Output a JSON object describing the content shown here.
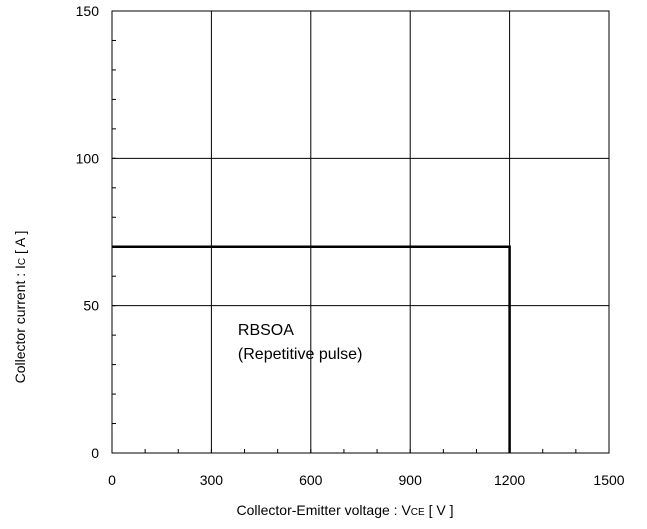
{
  "chart_data": {
    "type": "line",
    "title": "",
    "xlabel": "Collector-Emitter voltage  :  V",
    "xlabel_sub": "CE",
    "xlabel_unit": " [ V ]",
    "ylabel": "Collector current : I",
    "ylabel_sub": "C",
    "ylabel_unit": " [ A ]",
    "xlim": [
      0,
      1500
    ],
    "ylim": [
      0,
      150
    ],
    "x_ticks": [
      0,
      300,
      600,
      900,
      1200,
      1500
    ],
    "y_ticks": [
      0,
      50,
      100,
      150
    ],
    "x_tick_labels": [
      "0",
      "300",
      "600",
      "900",
      "1200",
      "1500"
    ],
    "y_tick_labels": [
      "0",
      "50",
      "100",
      "150"
    ],
    "grid": true,
    "series": [
      {
        "x": [
          0,
          1200,
          1200
        ],
        "y": [
          70,
          70,
          0
        ]
      }
    ],
    "annotation": {
      "lines": [
        "RBSOA",
        "(Repetitive pulse)"
      ],
      "x": 380,
      "y": 40
    }
  }
}
